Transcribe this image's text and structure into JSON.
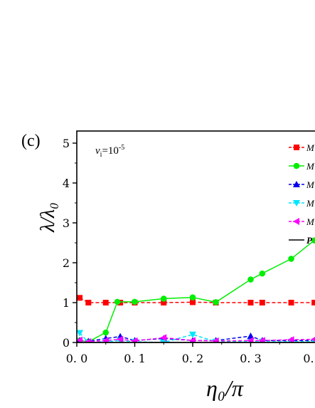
{
  "chart_data": {
    "type": "line",
    "panel_label": "(c)",
    "annotation": {
      "base": "v",
      "sub": "i",
      "eq": "=10",
      "sup": "-5"
    },
    "xlabel": "η₀/π",
    "ylabel": "λ/λ₀",
    "xlim": [
      0.0,
      0.41
    ],
    "ylim": [
      0,
      5
    ],
    "xticks": [
      0.0,
      0.1,
      0.2,
      0.3
    ],
    "xtick_labels": [
      "0. 0",
      "0. 1",
      "0. 2",
      "0. 3"
    ],
    "xtick_extra_label": "0.",
    "yticks": [
      0,
      1,
      2,
      3,
      4,
      5
    ],
    "ytick_labels": [
      "0",
      "1",
      "2",
      "3",
      "4",
      "5"
    ],
    "legend_position": "top-right",
    "series": [
      {
        "name": "M",
        "color": "#ff0000",
        "marker": "square",
        "dashed": true,
        "x": [
          0.005,
          0.02,
          0.05,
          0.075,
          0.1,
          0.15,
          0.2,
          0.24,
          0.3,
          0.32,
          0.37,
          0.41
        ],
        "y": [
          1.12,
          1.0,
          1.0,
          1.0,
          1.0,
          1.0,
          1.01,
          1.0,
          1.0,
          1.0,
          1.0,
          1.0
        ]
      },
      {
        "name": "M",
        "color": "#00ee00",
        "marker": "circle",
        "dashed": false,
        "x": [
          0.005,
          0.02,
          0.05,
          0.07,
          0.1,
          0.15,
          0.2,
          0.24,
          0.3,
          0.32,
          0.37,
          0.41
        ],
        "y": [
          0.05,
          0.02,
          0.25,
          1.02,
          1.02,
          1.1,
          1.13,
          1.01,
          1.58,
          1.73,
          2.1,
          2.56
        ]
      },
      {
        "name": "M",
        "color": "#0000ee",
        "marker": "triangle-up",
        "dashed": true,
        "x": [
          0.005,
          0.02,
          0.05,
          0.075,
          0.1,
          0.15,
          0.2,
          0.24,
          0.3,
          0.32,
          0.37,
          0.41
        ],
        "y": [
          0.05,
          0.03,
          0.1,
          0.15,
          0.05,
          0.1,
          0.05,
          0.05,
          0.16,
          0.05,
          0.05,
          0.05
        ]
      },
      {
        "name": "M",
        "color": "#00e5ff",
        "marker": "triangle-down",
        "dashed": true,
        "x": [
          0.005,
          0.02,
          0.05,
          0.075,
          0.1,
          0.15,
          0.2,
          0.24,
          0.3,
          0.32,
          0.37,
          0.41
        ],
        "y": [
          0.24,
          0.0,
          0.02,
          0.05,
          0.02,
          0.0,
          0.2,
          0.02,
          0.02,
          0.02,
          0.02,
          0.02
        ]
      },
      {
        "name": "M",
        "color": "#ff00ff",
        "marker": "triangle-left",
        "dashed": true,
        "x": [
          0.005,
          0.02,
          0.05,
          0.075,
          0.1,
          0.15,
          0.2,
          0.24,
          0.3,
          0.32,
          0.37,
          0.41
        ],
        "y": [
          0.06,
          0.02,
          0.05,
          0.08,
          0.04,
          0.12,
          0.05,
          0.04,
          0.05,
          0.05,
          0.07,
          0.08
        ]
      },
      {
        "name": "P",
        "color": "#000000",
        "marker": "none",
        "dashed": false,
        "x": [
          0.0,
          0.41
        ],
        "y": [
          0.0,
          0.0
        ]
      }
    ]
  }
}
